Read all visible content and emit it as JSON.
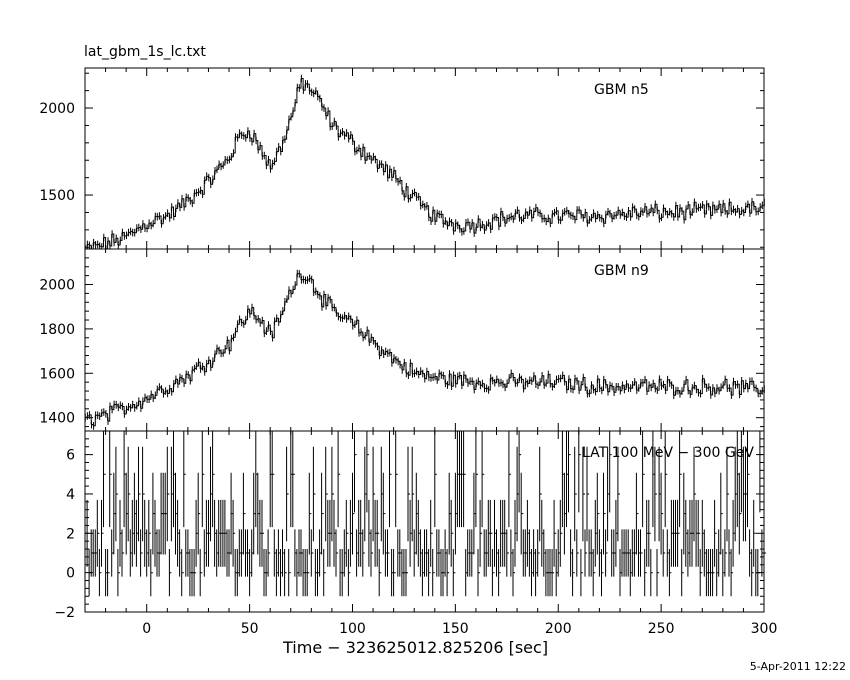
{
  "file_label": "lat_gbm_1s_lc.txt",
  "timestamp": "5-Apr-2011 12:22",
  "chart_data": {
    "type": "line",
    "xlabel": "Time − 323625012.825206 [sec]",
    "xlim": [
      -30,
      300
    ],
    "x_ticks": [
      0,
      50,
      100,
      150,
      200,
      250,
      300
    ],
    "panels": [
      {
        "label": "GBM n5",
        "ylim": [
          1190,
          2230
        ],
        "y_ticks": [
          1500,
          2000
        ],
        "series": [
          {
            "x": [
              -30,
              -20,
              -10,
              0,
              10,
              20,
              30,
              40,
              45,
              50,
              55,
              60,
              65,
              70,
              75,
              80,
              85,
              90,
              100,
              110,
              120,
              130,
              140,
              150,
              160,
              170,
              180,
              190,
              200,
              210,
              220,
              230,
              240,
              250,
              260,
              270,
              280,
              290,
              300
            ],
            "values": [
              1185,
              1220,
              1260,
              1340,
              1380,
              1470,
              1580,
              1720,
              1840,
              1870,
              1760,
              1660,
              1780,
              1950,
              2150,
              2100,
              2010,
              1900,
              1800,
              1700,
              1600,
              1470,
              1370,
              1330,
              1330,
              1360,
              1380,
              1380,
              1380,
              1380,
              1380,
              1390,
              1400,
              1400,
              1400,
              1410,
              1410,
              1420,
              1420
            ]
          }
        ]
      },
      {
        "label": "GBM n9",
        "ylim": [
          1340,
          2160
        ],
        "y_ticks": [
          1400,
          1600,
          1800,
          2000
        ],
        "series": [
          {
            "x": [
              -30,
              -20,
              -10,
              0,
              10,
              20,
              30,
              40,
              45,
              50,
              55,
              60,
              65,
              70,
              75,
              80,
              85,
              90,
              100,
              110,
              120,
              130,
              140,
              150,
              160,
              170,
              180,
              190,
              200,
              210,
              220,
              230,
              240,
              250,
              260,
              270,
              280,
              290,
              300
            ],
            "values": [
              1390,
              1410,
              1450,
              1490,
              1540,
              1590,
              1660,
              1740,
              1820,
              1880,
              1840,
              1770,
              1860,
              1980,
              2060,
              2010,
              1940,
              1880,
              1820,
              1740,
              1660,
              1600,
              1580,
              1570,
              1560,
              1560,
              1560,
              1560,
              1560,
              1550,
              1540,
              1540,
              1540,
              1540,
              1540,
              1540,
              1540,
              1530,
              1530
            ]
          }
        ]
      },
      {
        "label": "LAT 100 MeV − 300 GeV",
        "ylim": [
          -2,
          7.2
        ],
        "y_ticks": [
          -2,
          0,
          2,
          4,
          6
        ],
        "series": [
          {
            "x": [
              -30,
              0,
              50,
              100,
              150,
              200,
              250,
              300
            ],
            "values": [
              0.7,
              0.7,
              0.8,
              0.9,
              1.0,
              1.1,
              1.2,
              1.2
            ]
          }
        ]
      }
    ]
  }
}
